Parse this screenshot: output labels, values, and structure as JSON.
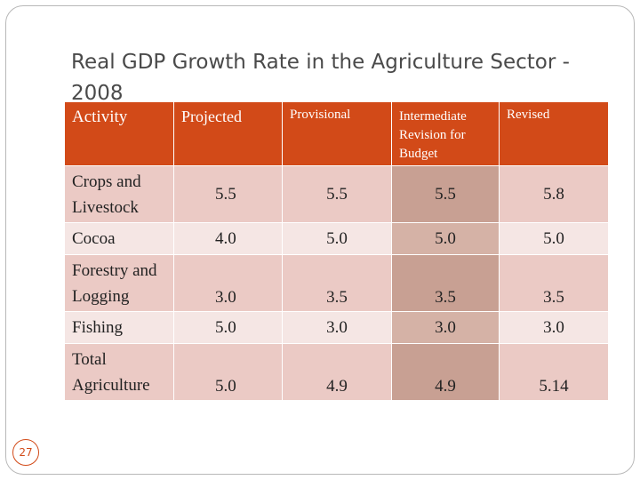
{
  "slide": {
    "title": "Real GDP Growth Rate in  the Agriculture Sector - 2008",
    "page_number": "27"
  },
  "table": {
    "headers": [
      "Activity",
      "Projected",
      "Provisional",
      "Intermediate Revision for Budget",
      "Revised"
    ],
    "rows": [
      {
        "activity": "Crops and Livestock",
        "values": [
          "5.5",
          "5.5",
          "5.5",
          "5.8"
        ]
      },
      {
        "activity": "Cocoa",
        "values": [
          "4.0",
          "5.0",
          "5.0",
          "5.0"
        ]
      },
      {
        "activity": "Forestry and Logging",
        "values": [
          "3.0",
          "3.5",
          "3.5",
          "3.5"
        ]
      },
      {
        "activity": "Fishing",
        "values": [
          "5.0",
          "3.0",
          "3.0",
          "3.0"
        ]
      },
      {
        "activity": "Total Agriculture",
        "values": [
          "5.0",
          "4.9",
          "4.9",
          "5.14"
        ]
      }
    ]
  },
  "colors": {
    "header_bg": "#d24a18",
    "highlight_col": "#c8a093",
    "row_odd": "#ebcac5",
    "row_even": "#f5e6e4"
  }
}
